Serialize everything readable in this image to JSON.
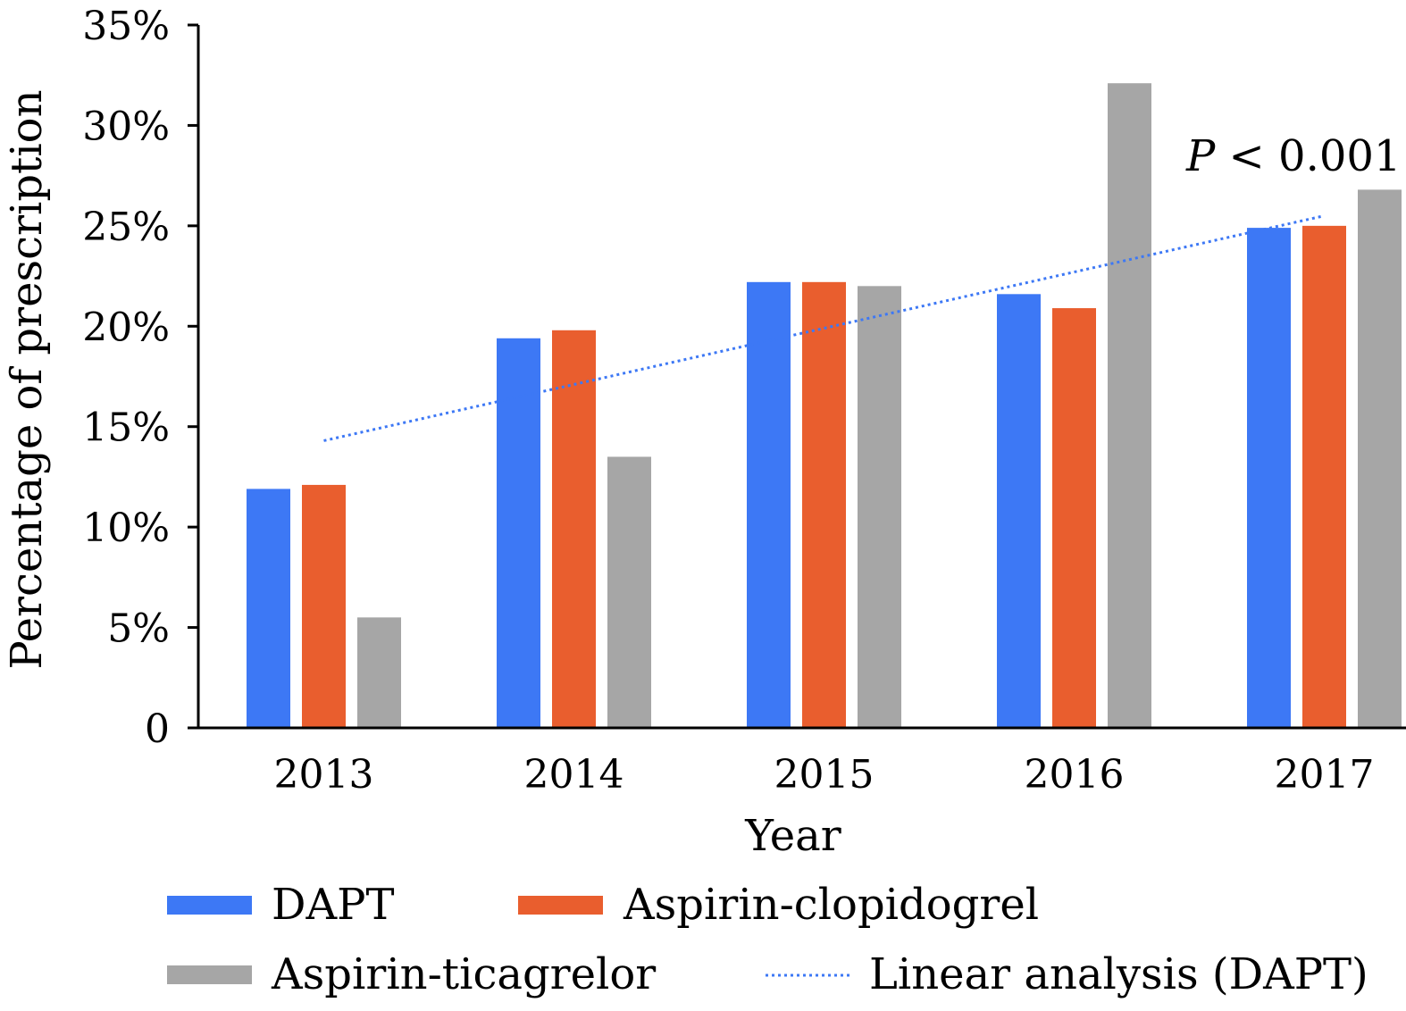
{
  "chart_data": {
    "type": "bar",
    "title": "",
    "xlabel": "Year",
    "ylabel": "Percentage of prescription",
    "categories": [
      "2013",
      "2014",
      "2015",
      "2016",
      "2017"
    ],
    "ylim": [
      0,
      35
    ],
    "yticks": [
      0,
      5,
      10,
      15,
      20,
      25,
      30,
      35
    ],
    "ytick_labels": [
      "0",
      "5%",
      "10%",
      "15%",
      "20%",
      "25%",
      "30%",
      "35%"
    ],
    "series": [
      {
        "name": "DAPT",
        "color": "#3d78f5",
        "values": [
          11.9,
          19.4,
          22.2,
          21.6,
          24.9
        ]
      },
      {
        "name": "Aspirin-clopidogrel",
        "color": "#e95e2e",
        "values": [
          12.1,
          19.8,
          22.2,
          20.9,
          25.0
        ]
      },
      {
        "name": "Aspirin-ticagrelor",
        "color": "#a6a6a6",
        "values": [
          5.5,
          13.5,
          22.0,
          32.1,
          26.8
        ]
      }
    ],
    "trendline": {
      "name": "Linear analysis (DAPT)",
      "color": "#3d78f5",
      "style": "dotted",
      "start": {
        "x": "2013",
        "y": 14.3
      },
      "end": {
        "x": "2017",
        "y": 25.5
      }
    },
    "annotation": {
      "p_symbol": "P",
      "text": " < 0.001"
    },
    "grid": false,
    "legend_position": "bottom"
  }
}
